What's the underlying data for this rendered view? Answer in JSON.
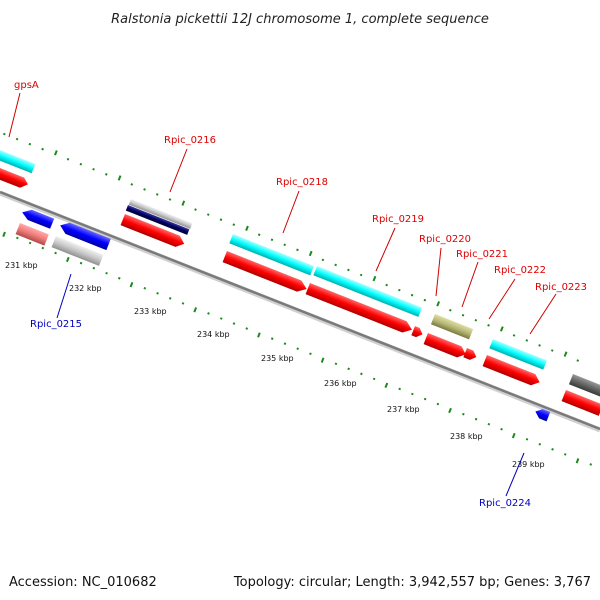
{
  "title": "Ralstonia pickettii 12J chromosome 1, complete sequence",
  "footer": {
    "accession": "Accession: NC_010682",
    "summary": "Topology: circular; Length: 3,942,557 bp; Genes: 3,767"
  },
  "colors": {
    "forward_label": "#dd0000",
    "reverse_label": "#0000bb",
    "cds": "#ff0000",
    "rna_cyan": "#00ffff",
    "reverse_cds": "#0000ff",
    "tick_green": "#1a8a1a",
    "backbone": "#808080"
  },
  "kbp_labels": [
    "231 kbp",
    "232 kbp",
    "233 kbp",
    "234 kbp",
    "235 kbp",
    "236 kbp",
    "237 kbp",
    "238 kbp",
    "239 kbp"
  ],
  "gene_labels": [
    {
      "text": "gpsA",
      "strand": "forward"
    },
    {
      "text": "Rpic_0216",
      "strand": "forward"
    },
    {
      "text": "Rpic_0218",
      "strand": "forward"
    },
    {
      "text": "Rpic_0219",
      "strand": "forward"
    },
    {
      "text": "Rpic_0220",
      "strand": "forward"
    },
    {
      "text": "Rpic_0221",
      "strand": "forward"
    },
    {
      "text": "Rpic_0222",
      "strand": "forward"
    },
    {
      "text": "Rpic_0223",
      "strand": "forward"
    },
    {
      "text": "Rpic_0215",
      "strand": "reverse"
    },
    {
      "text": "Rpic_0224",
      "strand": "reverse"
    }
  ]
}
